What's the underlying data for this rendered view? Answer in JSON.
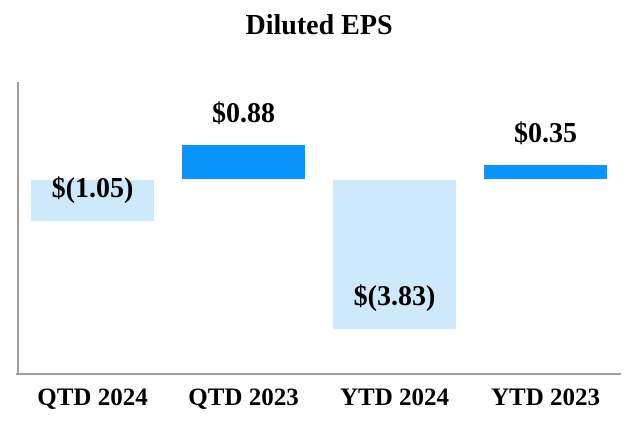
{
  "chart_data": {
    "type": "bar",
    "title": "Diluted EPS",
    "categories": [
      "QTD 2024",
      "QTD 2023",
      "YTD 2024",
      "YTD 2023"
    ],
    "values": [
      -1.05,
      0.88,
      -3.83,
      0.35
    ],
    "value_labels": [
      "$(1.05)",
      "$0.88",
      "$(3.83)",
      "$0.35"
    ],
    "xlabel": "",
    "ylabel": "",
    "ylim": [
      -5,
      2.5
    ],
    "grid": "off",
    "legend": "none",
    "label_placement": {
      "positive": "above-bar",
      "negative": "inside-end-bottom"
    },
    "colors": {
      "positive_bar": "#0995FB",
      "negative_bar": "#CDE9FB",
      "axis": "#9E9E9E",
      "text": "#000000"
    }
  }
}
